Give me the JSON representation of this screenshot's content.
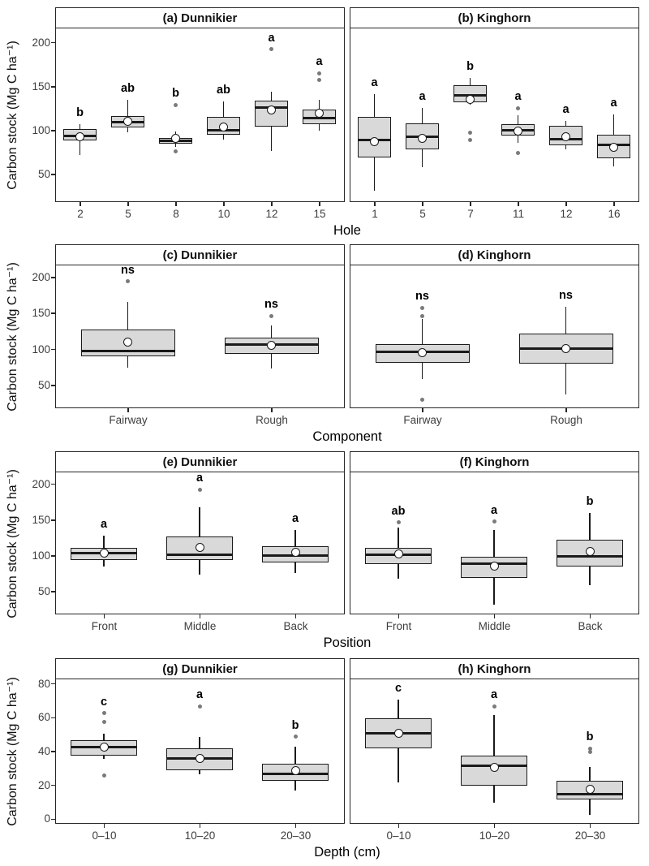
{
  "ylabel": "Carbon stock (Mg C ha⁻¹)",
  "colors": {
    "box_fill": "#d9d9d9",
    "box_border": "#1a1a1a",
    "median": "#1a1a1a",
    "mean_fill": "#ffffff",
    "outlier": "#7a7a7a",
    "panel_border": "#262626",
    "strip_bg": "#ffffff",
    "tick_label": "#3d3d3d",
    "axis_title": "#000000"
  },
  "chart_data": [
    {
      "type": "boxplot",
      "xlabel": "Hole",
      "ylim": [
        20,
        215
      ],
      "yticks": [
        50,
        100,
        150,
        200
      ],
      "panels": [
        {
          "title": "(a) Dunnikier",
          "boxes": [
            {
              "category": "2",
              "letter": "b",
              "whisker_low": 71,
              "q1": 87,
              "median": 93,
              "q3": 100,
              "whisker_high": 106,
              "mean": 92,
              "outliers": []
            },
            {
              "category": "5",
              "letter": "ab",
              "whisker_low": 97,
              "q1": 102,
              "median": 108,
              "q3": 115,
              "whisker_high": 134,
              "mean": 109,
              "outliers": []
            },
            {
              "category": "8",
              "letter": "b",
              "whisker_low": 80,
              "q1": 84,
              "median": 87,
              "q3": 90,
              "whisker_high": 98,
              "mean": 90,
              "outliers": [
                128,
                75
              ]
            },
            {
              "category": "10",
              "letter": "ab",
              "whisker_low": 88,
              "q1": 94,
              "median": 99,
              "q3": 114,
              "whisker_high": 132,
              "mean": 103,
              "outliers": []
            },
            {
              "category": "12",
              "letter": "a",
              "whisker_low": 75,
              "q1": 103,
              "median": 125,
              "q3": 133,
              "whisker_high": 143,
              "mean": 122,
              "outliers": [
                191
              ]
            },
            {
              "category": "15",
              "letter": "a",
              "whisker_low": 99,
              "q1": 106,
              "median": 113,
              "q3": 123,
              "whisker_high": 134,
              "mean": 118,
              "outliers": [
                164,
                156
              ]
            }
          ]
        },
        {
          "title": "(b) Kinghorn",
          "boxes": [
            {
              "category": "1",
              "letter": "a",
              "whisker_low": 30,
              "q1": 68,
              "median": 88,
              "q3": 114,
              "whisker_high": 140,
              "mean": 86,
              "outliers": []
            },
            {
              "category": "5",
              "letter": "a",
              "whisker_low": 57,
              "q1": 77,
              "median": 92,
              "q3": 107,
              "whisker_high": 124,
              "mean": 90,
              "outliers": []
            },
            {
              "category": "7",
              "letter": "b",
              "whisker_low": 128,
              "q1": 131,
              "median": 139,
              "q3": 150,
              "whisker_high": 159,
              "mean": 134,
              "outliers": [
                96,
                88
              ]
            },
            {
              "category": "11",
              "letter": "a",
              "whisker_low": 85,
              "q1": 93,
              "median": 99,
              "q3": 106,
              "whisker_high": 116,
              "mean": 98,
              "outliers": [
                124,
                73
              ]
            },
            {
              "category": "12",
              "letter": "a",
              "whisker_low": 77,
              "q1": 82,
              "median": 89,
              "q3": 104,
              "whisker_high": 110,
              "mean": 92,
              "outliers": []
            },
            {
              "category": "16",
              "letter": "a",
              "whisker_low": 58,
              "q1": 67,
              "median": 82,
              "q3": 94,
              "whisker_high": 117,
              "mean": 80,
              "outliers": []
            }
          ]
        }
      ]
    },
    {
      "type": "boxplot",
      "xlabel": "Component",
      "ylim": [
        20,
        215
      ],
      "yticks": [
        50,
        100,
        150,
        200
      ],
      "panels": [
        {
          "title": "(c) Dunnikier",
          "boxes": [
            {
              "category": "Fairway",
              "letter": "ns",
              "whisker_low": 73,
              "q1": 89,
              "median": 96,
              "q3": 126,
              "whisker_high": 164,
              "mean": 108,
              "outliers": [
                193
              ]
            },
            {
              "category": "Rough",
              "letter": "ns",
              "whisker_low": 72,
              "q1": 92,
              "median": 105,
              "q3": 115,
              "whisker_high": 132,
              "mean": 104,
              "outliers": [
                145
              ]
            }
          ]
        },
        {
          "title": "(d) Kinghorn",
          "boxes": [
            {
              "category": "Fairway",
              "letter": "ns",
              "whisker_low": 57,
              "q1": 80,
              "median": 95,
              "q3": 106,
              "whisker_high": 141,
              "mean": 94,
              "outliers": [
                156,
                145,
                29
              ]
            },
            {
              "category": "Rough",
              "letter": "ns",
              "whisker_low": 36,
              "q1": 79,
              "median": 100,
              "q3": 120,
              "whisker_high": 158,
              "mean": 99,
              "outliers": []
            }
          ]
        }
      ]
    },
    {
      "type": "boxplot",
      "xlabel": "Position",
      "ylim": [
        20,
        215
      ],
      "yticks": [
        50,
        100,
        150,
        200
      ],
      "panels": [
        {
          "title": "(e) Dunnikier",
          "boxes": [
            {
              "category": "Front",
              "letter": "a",
              "whisker_low": 84,
              "q1": 93,
              "median": 102,
              "q3": 110,
              "whisker_high": 127,
              "mean": 102,
              "outliers": []
            },
            {
              "category": "Middle",
              "letter": "a",
              "whisker_low": 72,
              "q1": 92,
              "median": 100,
              "q3": 126,
              "whisker_high": 166,
              "mean": 110,
              "outliers": [
                191
              ]
            },
            {
              "category": "Back",
              "letter": "a",
              "whisker_low": 74,
              "q1": 89,
              "median": 99,
              "q3": 112,
              "whisker_high": 135,
              "mean": 103,
              "outliers": []
            }
          ]
        },
        {
          "title": "(f) Kinghorn",
          "boxes": [
            {
              "category": "Front",
              "letter": "ab",
              "whisker_low": 66,
              "q1": 87,
              "median": 100,
              "q3": 109,
              "whisker_high": 138,
              "mean": 101,
              "outliers": [
                145
              ]
            },
            {
              "category": "Middle",
              "letter": "a",
              "whisker_low": 30,
              "q1": 68,
              "median": 88,
              "q3": 97,
              "whisker_high": 135,
              "mean": 84,
              "outliers": [
                146
              ]
            },
            {
              "category": "Back",
              "letter": "b",
              "whisker_low": 57,
              "q1": 83,
              "median": 98,
              "q3": 121,
              "whisker_high": 158,
              "mean": 104,
              "outliers": []
            }
          ]
        }
      ]
    },
    {
      "type": "boxplot",
      "xlabel": "Depth (cm)",
      "ylim": [
        -2,
        82
      ],
      "yticks": [
        0,
        20,
        40,
        60,
        80
      ],
      "panels": [
        {
          "title": "(g) Dunnikier",
          "boxes": [
            {
              "category": "0–10",
              "letter": "c",
              "whisker_low": 35,
              "q1": 37,
              "median": 42,
              "q3": 46,
              "whisker_high": 50,
              "mean": 42,
              "outliers": [
                62,
                57,
                25
              ]
            },
            {
              "category": "10–20",
              "letter": "a",
              "whisker_low": 26,
              "q1": 28,
              "median": 35,
              "q3": 41,
              "whisker_high": 48,
              "mean": 35,
              "outliers": [
                66
              ]
            },
            {
              "category": "20–30",
              "letter": "b",
              "whisker_low": 16,
              "q1": 22,
              "median": 26,
              "q3": 32,
              "whisker_high": 42,
              "mean": 28,
              "outliers": [
                48
              ]
            }
          ]
        },
        {
          "title": "(h) Kinghorn",
          "boxes": [
            {
              "category": "0–10",
              "letter": "c",
              "whisker_low": 21,
              "q1": 41,
              "median": 50,
              "q3": 59,
              "whisker_high": 70,
              "mean": 50,
              "outliers": []
            },
            {
              "category": "10–20",
              "letter": "a",
              "whisker_low": 9,
              "q1": 19,
              "median": 31,
              "q3": 37,
              "whisker_high": 61,
              "mean": 30,
              "outliers": [
                66
              ]
            },
            {
              "category": "20–30",
              "letter": "b",
              "whisker_low": 2,
              "q1": 11,
              "median": 14,
              "q3": 22,
              "whisker_high": 30,
              "mean": 17,
              "outliers": [
                41,
                39
              ]
            }
          ]
        }
      ]
    }
  ]
}
